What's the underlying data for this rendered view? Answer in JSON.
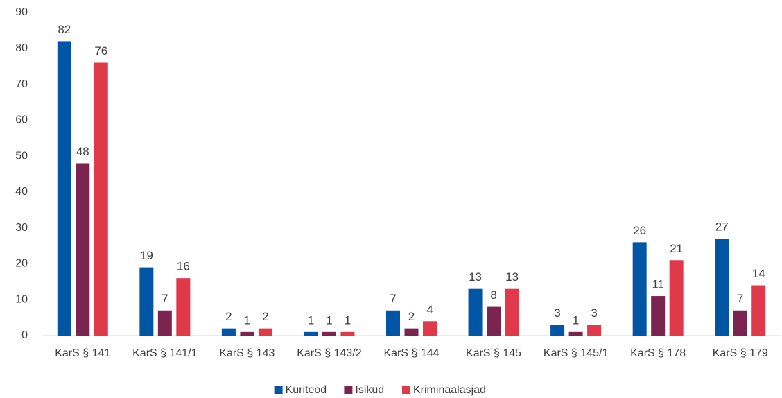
{
  "chart_data": {
    "type": "bar",
    "categories": [
      "KarS § 141",
      "KarS § 141/1",
      "KarS § 143",
      "KarS § 143/2",
      "KarS § 144",
      "KarS § 145",
      "KarS § 145/1",
      "KarS § 178",
      "KarS § 179"
    ],
    "series": [
      {
        "name": "Kuriteod",
        "color": "#0055a5",
        "values": [
          82,
          19,
          2,
          1,
          7,
          13,
          3,
          26,
          27
        ]
      },
      {
        "name": "Isikud",
        "color": "#7b2450",
        "values": [
          48,
          7,
          1,
          1,
          2,
          8,
          1,
          11,
          7
        ]
      },
      {
        "name": "Kriminaalasjad",
        "color": "#e03a4a",
        "values": [
          76,
          16,
          2,
          1,
          4,
          13,
          3,
          21,
          14
        ]
      }
    ],
    "ylim": [
      0,
      90
    ],
    "yticks": [
      0,
      10,
      20,
      30,
      40,
      50,
      60,
      70,
      80,
      90
    ],
    "grid": false,
    "legend": "bottom"
  }
}
